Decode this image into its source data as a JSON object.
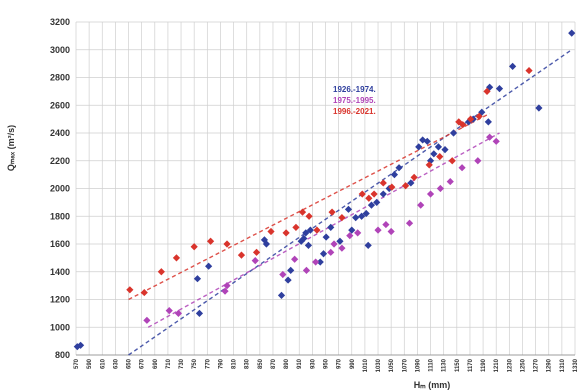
{
  "chart_data": {
    "type": "scatter",
    "title": "",
    "xlabel": "Hₘ (mm)",
    "ylabel": "Qₘₐₓ (m³/s)",
    "ylim": [
      800,
      3200
    ],
    "xlim": [
      570,
      1330
    ],
    "yticks": [
      800,
      1000,
      1200,
      1400,
      1600,
      1800,
      2000,
      2200,
      2400,
      2600,
      2800,
      3000,
      3200
    ],
    "xticks": [
      570,
      590,
      610,
      630,
      650,
      670,
      690,
      710,
      730,
      750,
      770,
      790,
      810,
      830,
      850,
      870,
      890,
      910,
      930,
      950,
      970,
      990,
      1010,
      1030,
      1050,
      1070,
      1090,
      1110,
      1130,
      1150,
      1170,
      1190,
      1210,
      1230,
      1250,
      1270,
      1290,
      1310,
      1330
    ],
    "grid": true,
    "legend_position": "center",
    "series": [
      {
        "name": "1926.-1974.",
        "color": "#2f3f9e",
        "points": [
          [
            572,
            860
          ],
          [
            577,
            870
          ],
          [
            758,
            1100
          ],
          [
            755,
            1350
          ],
          [
            772,
            1440
          ],
          [
            860,
            1600
          ],
          [
            857,
            1630
          ],
          [
            883,
            1230
          ],
          [
            893,
            1340
          ],
          [
            897,
            1410
          ],
          [
            913,
            1620
          ],
          [
            917,
            1640
          ],
          [
            920,
            1680
          ],
          [
            924,
            1590
          ],
          [
            927,
            1700
          ],
          [
            942,
            1470
          ],
          [
            947,
            1530
          ],
          [
            951,
            1650
          ],
          [
            958,
            1720
          ],
          [
            972,
            1620
          ],
          [
            985,
            1850
          ],
          [
            990,
            1700
          ],
          [
            996,
            1790
          ],
          [
            1005,
            1800
          ],
          [
            1012,
            1820
          ],
          [
            1015,
            1590
          ],
          [
            1020,
            1880
          ],
          [
            1028,
            1900
          ],
          [
            1038,
            1960
          ],
          [
            1047,
            2000
          ],
          [
            1055,
            2100
          ],
          [
            1062,
            2150
          ],
          [
            1080,
            2040
          ],
          [
            1092,
            2300
          ],
          [
            1098,
            2350
          ],
          [
            1105,
            2340
          ],
          [
            1110,
            2200
          ],
          [
            1115,
            2250
          ],
          [
            1122,
            2300
          ],
          [
            1132,
            2280
          ],
          [
            1145,
            2400
          ],
          [
            1168,
            2480
          ],
          [
            1175,
            2500
          ],
          [
            1188,
            2550
          ],
          [
            1198,
            2480
          ],
          [
            1200,
            2730
          ],
          [
            1215,
            2720
          ],
          [
            1235,
            2880
          ],
          [
            1275,
            2580
          ],
          [
            1325,
            3120
          ]
        ]
      },
      {
        "name": "1975.-1995.",
        "color": "#b044b8",
        "points": [
          [
            678,
            1050
          ],
          [
            712,
            1120
          ],
          [
            726,
            1100
          ],
          [
            797,
            1260
          ],
          [
            800,
            1300
          ],
          [
            843,
            1480
          ],
          [
            885,
            1380
          ],
          [
            903,
            1490
          ],
          [
            921,
            1410
          ],
          [
            935,
            1470
          ],
          [
            958,
            1540
          ],
          [
            963,
            1600
          ],
          [
            975,
            1570
          ],
          [
            987,
            1660
          ],
          [
            999,
            1680
          ],
          [
            1030,
            1700
          ],
          [
            1042,
            1740
          ],
          [
            1050,
            1690
          ],
          [
            1078,
            1750
          ],
          [
            1095,
            1880
          ],
          [
            1110,
            1960
          ],
          [
            1125,
            2000
          ],
          [
            1140,
            2050
          ],
          [
            1158,
            2150
          ],
          [
            1182,
            2200
          ],
          [
            1200,
            2370
          ],
          [
            1210,
            2340
          ]
        ]
      },
      {
        "name": "1996.-2021.",
        "color": "#d9342c",
        "points": [
          [
            652,
            1270
          ],
          [
            674,
            1250
          ],
          [
            700,
            1400
          ],
          [
            723,
            1500
          ],
          [
            750,
            1580
          ],
          [
            775,
            1620
          ],
          [
            800,
            1600
          ],
          [
            822,
            1520
          ],
          [
            845,
            1540
          ],
          [
            867,
            1690
          ],
          [
            890,
            1680
          ],
          [
            905,
            1720
          ],
          [
            915,
            1830
          ],
          [
            925,
            1800
          ],
          [
            937,
            1700
          ],
          [
            960,
            1830
          ],
          [
            975,
            1790
          ],
          [
            1006,
            1960
          ],
          [
            1016,
            1930
          ],
          [
            1024,
            1960
          ],
          [
            1038,
            2040
          ],
          [
            1051,
            2010
          ],
          [
            1072,
            2020
          ],
          [
            1085,
            2080
          ],
          [
            1108,
            2170
          ],
          [
            1124,
            2230
          ],
          [
            1143,
            2200
          ],
          [
            1153,
            2480
          ],
          [
            1159,
            2460
          ],
          [
            1171,
            2500
          ],
          [
            1184,
            2520
          ],
          [
            1196,
            2700
          ],
          [
            1260,
            2850
          ]
        ]
      }
    ],
    "trendlines": [
      {
        "series": "1926.-1974.",
        "from": [
          650,
          800
        ],
        "to": [
          1325,
          3000
        ]
      },
      {
        "series": "1975.-1995.",
        "from": [
          680,
          1000
        ],
        "to": [
          1215,
          2400
        ]
      },
      {
        "series": "1996.-2021.",
        "from": [
          650,
          1200
        ],
        "to": [
          1200,
          2540
        ]
      }
    ]
  }
}
